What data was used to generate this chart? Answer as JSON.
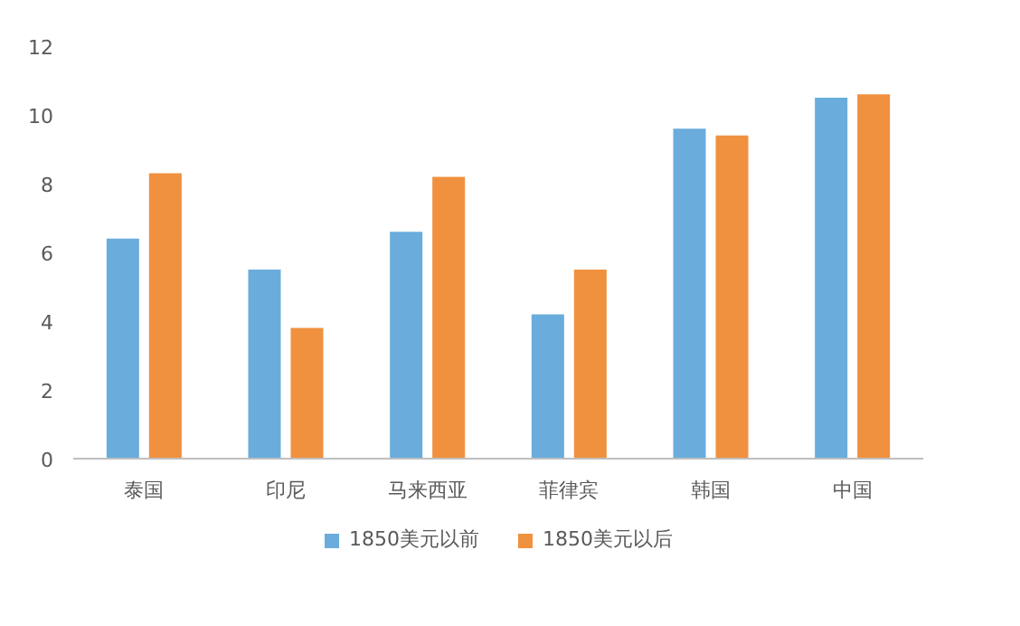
{
  "chart_data": {
    "type": "bar",
    "categories": [
      "泰国",
      "印尼",
      "马来西亚",
      "菲律宾",
      "韩国",
      "中国"
    ],
    "series": [
      {
        "name": "1850美元以前",
        "color": "#6aaddc",
        "values": [
          6.4,
          5.5,
          6.6,
          4.2,
          9.6,
          10.5
        ]
      },
      {
        "name": "1850美元以后",
        "color": "#f0913f",
        "values": [
          8.3,
          3.8,
          8.2,
          5.5,
          9.4,
          10.6
        ]
      }
    ],
    "ylim": [
      0,
      12
    ],
    "yticks": [
      0,
      2,
      4,
      6,
      8,
      10,
      12
    ],
    "grid": false,
    "legend": "bottom"
  }
}
